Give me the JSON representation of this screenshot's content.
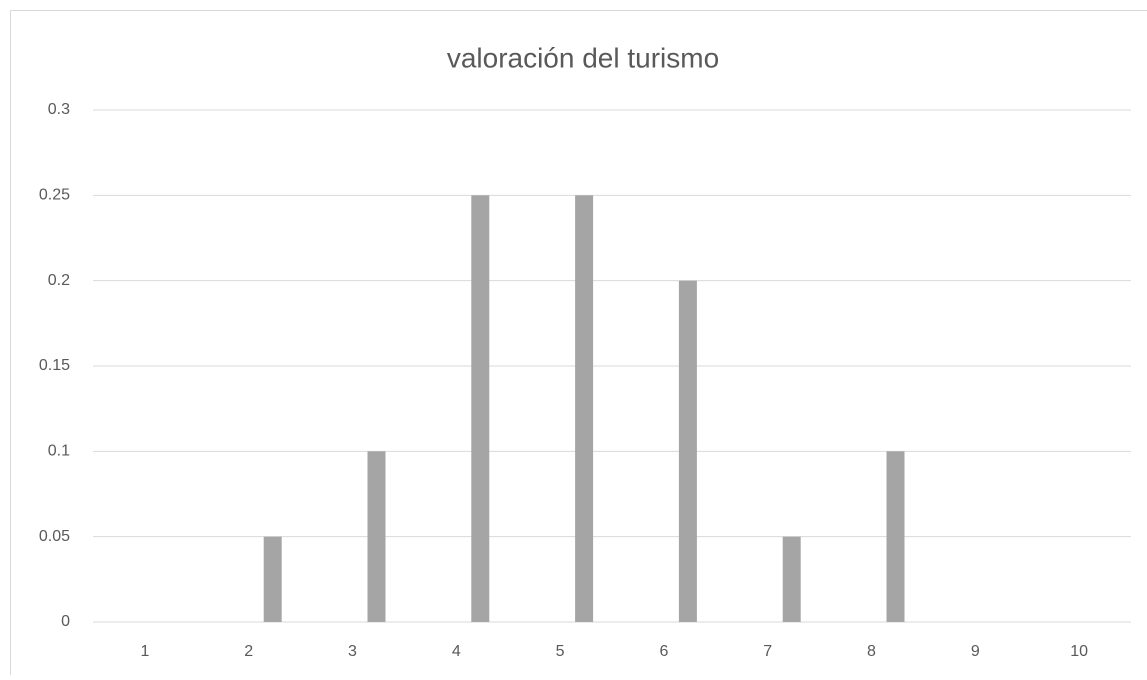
{
  "chart_data": {
    "type": "bar",
    "title": "valoración del turismo",
    "categories": [
      "1",
      "2",
      "3",
      "4",
      "5",
      "6",
      "7",
      "8",
      "9",
      "10"
    ],
    "values": [
      0,
      0.05,
      0.1,
      0.25,
      0.25,
      0.2,
      0.05,
      0.1,
      0,
      0
    ],
    "color": "#a5a5a5",
    "ylim": [
      0,
      0.3
    ],
    "yticks": [
      0,
      0.05,
      0.1,
      0.15,
      0.2,
      0.25,
      0.3
    ],
    "grid": true
  }
}
